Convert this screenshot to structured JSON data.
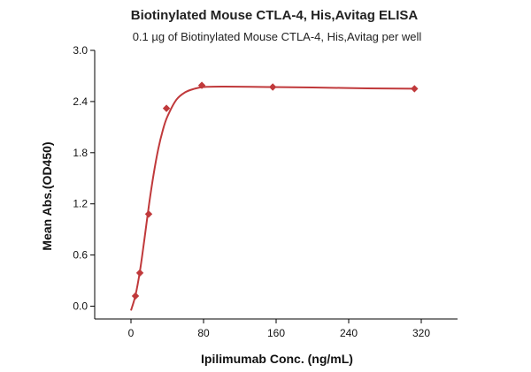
{
  "chart_data": {
    "type": "scatter",
    "title": "Biotinylated Mouse CTLA-4, His,Avitag ELISA",
    "subtitle": "0.1 µg of Biotinylated Mouse CTLA-4, His,Avitag per well",
    "xlabel": "Ipilimumab Conc. (ng/mL)",
    "ylabel": "Mean Abs.(OD450)",
    "xlim": [
      -40,
      360
    ],
    "ylim": [
      -0.15,
      3.0
    ],
    "xticks": [
      0,
      80,
      160,
      240,
      320
    ],
    "yticks": [
      0.0,
      0.6,
      1.2,
      1.8,
      2.4,
      3.0
    ],
    "xtick_labels": [
      "0",
      "80",
      "160",
      "240",
      "320"
    ],
    "ytick_labels": [
      "0.0",
      "0.6",
      "1.2",
      "1.8",
      "2.4",
      "3.0"
    ],
    "grid": false,
    "legend": "none",
    "series": [
      {
        "color": "#c0393b",
        "marker": "diamond",
        "points": [
          {
            "x": 4.9,
            "y": 0.12
          },
          {
            "x": 9.8,
            "y": 0.39
          },
          {
            "x": 19.5,
            "y": 1.08
          },
          {
            "x": 39.1,
            "y": 2.32
          },
          {
            "x": 78.1,
            "y": 2.59
          },
          {
            "x": 156.3,
            "y": 2.57
          },
          {
            "x": 312.5,
            "y": 2.55
          }
        ],
        "fit_curve": [
          {
            "x": 0,
            "y": -0.05
          },
          {
            "x": 5,
            "y": 0.13
          },
          {
            "x": 10,
            "y": 0.42
          },
          {
            "x": 15,
            "y": 0.8
          },
          {
            "x": 20,
            "y": 1.2
          },
          {
            "x": 25,
            "y": 1.55
          },
          {
            "x": 30,
            "y": 1.84
          },
          {
            "x": 35,
            "y": 2.06
          },
          {
            "x": 40,
            "y": 2.22
          },
          {
            "x": 50,
            "y": 2.42
          },
          {
            "x": 60,
            "y": 2.51
          },
          {
            "x": 70,
            "y": 2.55
          },
          {
            "x": 80,
            "y": 2.57
          },
          {
            "x": 100,
            "y": 2.575
          },
          {
            "x": 150,
            "y": 2.57
          },
          {
            "x": 200,
            "y": 2.565
          },
          {
            "x": 260,
            "y": 2.555
          },
          {
            "x": 312.5,
            "y": 2.55
          }
        ]
      }
    ]
  }
}
